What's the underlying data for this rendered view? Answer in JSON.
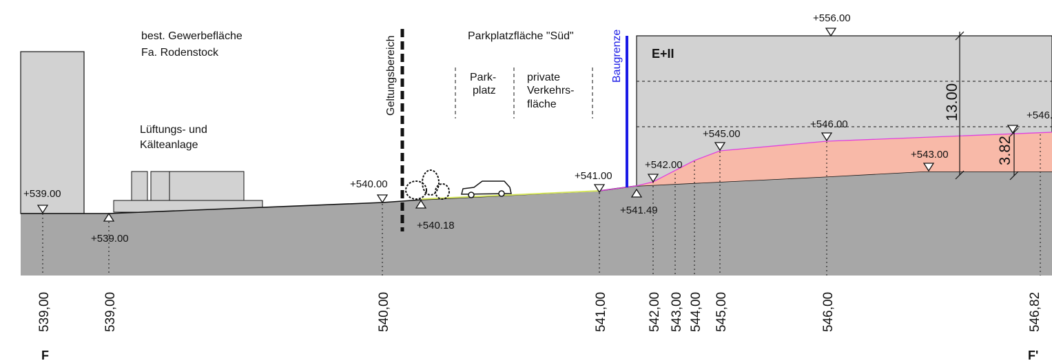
{
  "labels": {
    "existing_area_1": "best. Gewerbefläche",
    "existing_area_2": "Fa. Rodenstock",
    "ventilation_1": "Lüftungs- und",
    "ventilation_2": "Kälteanlage",
    "scope": "Geltungsbereich",
    "parking_area": "Parkplatzfläche \"Süd\"",
    "park_1": "Park-",
    "park_2": "platz",
    "private_1": "private",
    "private_2": "Verkehrs-",
    "private_3": "fläche",
    "building_line": "Baugrenze",
    "floors": "E+II"
  },
  "elevations": {
    "e539_a": "+539.00",
    "e539_b": "+539.00",
    "e540": "+540.00",
    "e540_18": "+540.18",
    "e541": "+541.00",
    "e541_49": "+541.49",
    "e542": "+542.00",
    "e545": "+545.00",
    "e546": "+546.00",
    "e543": "+543.00",
    "e546_right": "+546.",
    "e556": "+556.00"
  },
  "dimensions": {
    "height": "13.00",
    "fill_depth": "3.82"
  },
  "axis_values": [
    "539,00",
    "539,00",
    "540,00",
    "541,00",
    "542,00",
    "543,00",
    "544,00",
    "545,00",
    "546,00",
    "546,82"
  ],
  "section": {
    "start": "F",
    "end": "F'"
  },
  "colors": {
    "terrain": "#a7a7a7",
    "building": "#d2d2d2",
    "fill": "#f8b9a8",
    "fill_edge": "#e040e0",
    "building_line": "#1a1ae6"
  }
}
